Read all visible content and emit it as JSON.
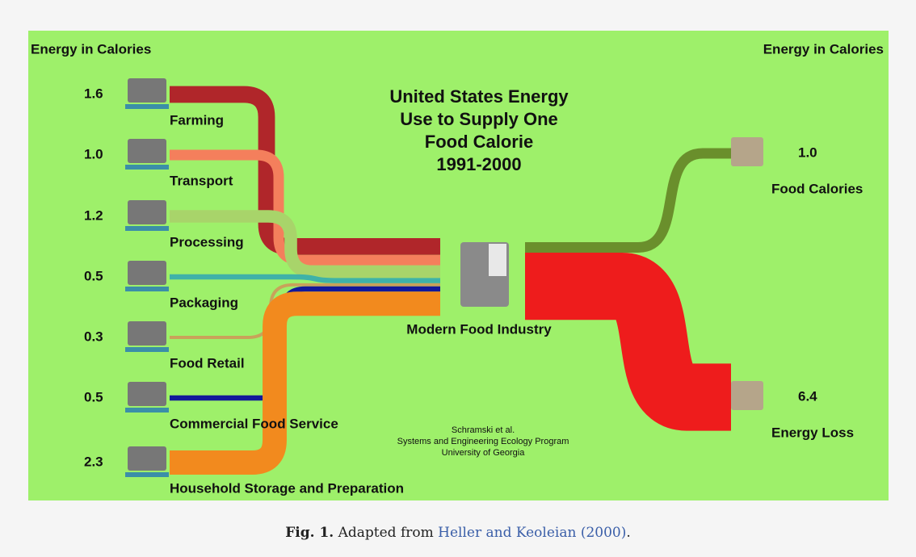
{
  "left_heading": "Energy in Calories",
  "right_heading": "Energy in Calories",
  "title_lines": [
    "United States Energy",
    "Use to Supply One",
    "Food Calorie",
    "1991-2000"
  ],
  "inputs": [
    {
      "label": "Farming",
      "value": 1.6,
      "color": "#b0262a"
    },
    {
      "label": "Transport",
      "value": 1.0,
      "value_label": "1.0",
      "color": "#f47f5c"
    },
    {
      "label": "Processing",
      "value": 1.2,
      "color": "#a8d46a"
    },
    {
      "label": "Packaging",
      "value": 0.5,
      "color": "#3fb2a8"
    },
    {
      "label": "Food Retail",
      "value": 0.3,
      "color": "#c9a25a"
    },
    {
      "label": "Commercial Food Service",
      "value": 0.5,
      "color": "#12199a"
    },
    {
      "label": "Household Storage and Preparation",
      "value": 2.3,
      "color": "#f28a1e"
    }
  ],
  "hub": "Modern Food Industry",
  "outputs": [
    {
      "label": "Food Calories",
      "value": 1.0,
      "value_label": "1.0",
      "color": "#6a8f2c"
    },
    {
      "label": "Energy Loss",
      "value": 6.4,
      "color": "#ee1c1c"
    }
  ],
  "credit": [
    "Schramski et al.",
    "Systems and Engineering Ecology Program",
    "University of Georgia"
  ],
  "caption": {
    "label": "Fig. 1.",
    "text": "Adapted from",
    "link": "Heller and Keoleian (2000)",
    "end": "."
  }
}
